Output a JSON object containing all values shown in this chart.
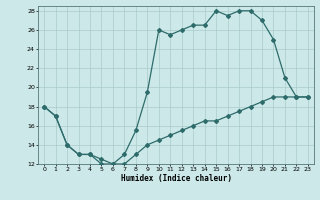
{
  "xlabel": "Humidex (Indice chaleur)",
  "background_color": "#cce8e8",
  "grid_color": "#aacccc",
  "line_color": "#2e6b6b",
  "xlim": [
    -0.5,
    23.5
  ],
  "ylim": [
    12,
    28.5
  ],
  "xticks": [
    0,
    1,
    2,
    3,
    4,
    5,
    6,
    7,
    8,
    9,
    10,
    11,
    12,
    13,
    14,
    15,
    16,
    17,
    18,
    19,
    20,
    21,
    22,
    23
  ],
  "yticks": [
    12,
    14,
    16,
    18,
    20,
    22,
    24,
    26,
    28
  ],
  "line1_x": [
    0,
    1,
    2,
    3,
    4,
    5,
    6,
    7,
    8,
    9,
    10,
    11,
    12,
    13,
    14,
    15,
    16,
    17,
    18,
    19,
    20,
    21,
    22,
    23
  ],
  "line1_y": [
    18,
    17,
    14,
    13,
    13,
    12,
    12,
    13,
    15.5,
    19.5,
    26,
    25.5,
    26,
    26.5,
    26.5,
    28,
    27.5,
    28,
    28,
    27,
    25,
    21,
    19,
    19
  ],
  "line2_x": [
    0,
    1,
    2,
    3,
    4,
    5,
    6,
    7,
    8,
    9,
    10,
    11,
    12,
    13,
    14,
    15,
    16,
    17,
    18,
    19,
    20,
    21,
    22,
    23
  ],
  "line2_y": [
    18,
    17,
    14,
    13,
    13,
    12.5,
    12,
    12,
    13,
    14,
    14.5,
    15,
    15.5,
    16,
    16.5,
    16.5,
    17,
    17.5,
    18,
    18.5,
    19,
    19,
    19,
    19
  ],
  "marker_size": 2,
  "line_width": 0.9
}
